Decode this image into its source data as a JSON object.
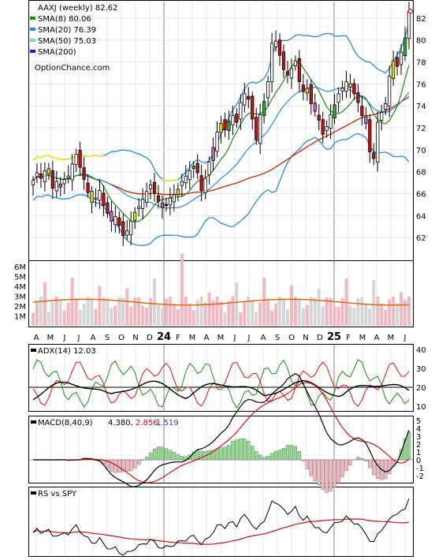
{
  "chart_data": [
    {
      "type": "candlestick",
      "panel": "price",
      "title": "AAXJ (weekly) 82.62",
      "watermark": "OptionChance.com",
      "legend": [
        {
          "label": "SMA(8) 80.06",
          "color": "#1a8a1a"
        },
        {
          "label": "SMA(20) 76.39",
          "color": "#2a8ad8"
        },
        {
          "label": "SMA(50) 75.03",
          "color": "#8fc8ee"
        },
        {
          "label": "SMA(200)",
          "color": "#1a1adb"
        }
      ],
      "y_ticks": [
        "82",
        "80",
        "78",
        "76",
        "74",
        "72",
        "70",
        "68",
        "66",
        "64",
        "62"
      ],
      "ylim": [
        60,
        83.5
      ],
      "overlays": [
        "SMA(8)",
        "SMA(20)",
        "SMA(50)",
        "Bollinger Bands(20)"
      ],
      "close_series": [
        67.2,
        67.9,
        67.4,
        68.1,
        67.8,
        66.5,
        67.1,
        66.6,
        67.3,
        67.6,
        68.7,
        69.6,
        68.4,
        67.3,
        66.1,
        65.2,
        65.6,
        66.3,
        64.9,
        64.2,
        63.5,
        63.9,
        63.1,
        62.2,
        62.6,
        63.5,
        64.3,
        64.8,
        65.5,
        66.2,
        66.8,
        66.1,
        65.3,
        64.7,
        64.9,
        65.6,
        65.9,
        66.4,
        67.1,
        67.6,
        68.1,
        68.5,
        67.9,
        66.3,
        67.4,
        68.9,
        70.2,
        71.6,
        72.4,
        71.8,
        72.6,
        73.1,
        72.5,
        74.3,
        75.1,
        74.6,
        72.8,
        70.9,
        73.2,
        74.4,
        76.2,
        79.7,
        79.9,
        78.6,
        77.3,
        76.8,
        77.4,
        78.1,
        76.2,
        75.3,
        75.6,
        74.2,
        73.5,
        72.7,
        71.4,
        72.1,
        73.2,
        74.1,
        75.1,
        75.6,
        76.2,
        75.7,
        75.1,
        74.3,
        73.1,
        72.4,
        69.8,
        69.2,
        72.5,
        73.4,
        74.2,
        76.7,
        78.1,
        77.6,
        78.9,
        80.2,
        82.62
      ]
    },
    {
      "type": "bar",
      "panel": "volume",
      "y_ticks": [
        "6M",
        "5M",
        "4M",
        "3M",
        "2M",
        "1M"
      ],
      "ylim": [
        0,
        6500000
      ],
      "x_ticks": [
        "A",
        "M",
        "J",
        "J",
        "A",
        "S",
        "O",
        "N",
        "D",
        "24",
        "F",
        "M",
        "A",
        "M",
        "J",
        "J",
        "A",
        "S",
        "O",
        "N",
        "D",
        "25",
        "F",
        "M",
        "A",
        "M",
        "J"
      ],
      "volume_avg_color": "#e06000"
    },
    {
      "type": "line",
      "panel": "adx",
      "label": "ADX(14) 12.03",
      "y_ticks": [
        "40",
        "30",
        "20",
        "10"
      ],
      "ylim": [
        8,
        42
      ],
      "reference_line": 20
    },
    {
      "type": "line",
      "panel": "macd",
      "label": "MACD(8,40,9)",
      "values": [
        "4.380,",
        "2.856,",
        "1.519"
      ],
      "y_ticks": [
        "5",
        "4",
        "3",
        "2",
        "1",
        "0",
        "-1",
        "-2"
      ],
      "ylim": [
        -2.8,
        5.4
      ]
    },
    {
      "type": "line",
      "panel": "rs",
      "label": "RS vs SPY"
    }
  ],
  "colors": {
    "up_candle": "#ffffff",
    "down_candle": "#cc1111",
    "doji_yellow": "#e8e800",
    "doji_violet": "#cc66cc",
    "green_candle": "#22bb22",
    "volume_up": "#f2b8c0",
    "volume_down": "#d6d6d6"
  }
}
